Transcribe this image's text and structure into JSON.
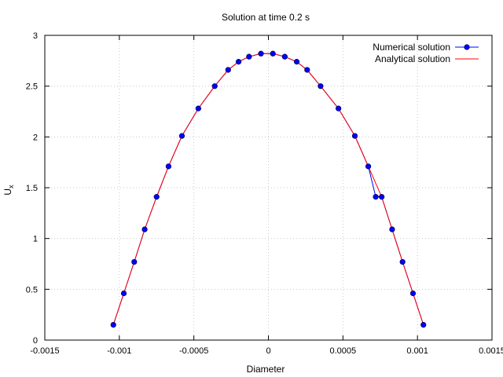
{
  "chart_data": {
    "type": "line",
    "title": "Solution at time 0.2 s",
    "xlabel": "Diameter",
    "ylabel": "U",
    "ylabel_sub": "x",
    "xlim": [
      -0.0015,
      0.0015
    ],
    "ylim": [
      0,
      3
    ],
    "xticks": [
      -0.0015,
      -0.001,
      -0.0005,
      0,
      0.0005,
      0.001,
      0.0015
    ],
    "xtick_labels": [
      "-0.0015",
      "-0.001",
      "-0.0005",
      "0",
      "0.0005",
      "0.001",
      "0.0015"
    ],
    "yticks": [
      0,
      0.5,
      1,
      1.5,
      2,
      2.5,
      3
    ],
    "ytick_labels": [
      "0",
      "0.5",
      "1",
      "1.5",
      "2",
      "2.5",
      "3"
    ],
    "grid": true,
    "legend_position": "top-right",
    "series": [
      {
        "name": "Numerical solution",
        "color": "#0000ff",
        "marker_color": "#0000ff",
        "style": "line-points",
        "x": [
          -0.00104,
          -0.00097,
          -0.0009,
          -0.00083,
          -0.00075,
          -0.00067,
          -0.00058,
          -0.00047,
          -0.00036,
          -0.00027,
          -0.0002,
          -0.00013,
          -5e-05,
          3e-05,
          0.00011,
          0.00019,
          0.00026,
          0.00035,
          0.00047,
          0.00058,
          0.00067,
          0.00072,
          0.00076,
          0.00083,
          0.0009,
          0.00097,
          0.00104
        ],
        "y": [
          0.15,
          0.46,
          0.77,
          1.09,
          1.41,
          1.71,
          2.01,
          2.28,
          2.5,
          2.66,
          2.74,
          2.79,
          2.82,
          2.82,
          2.79,
          2.74,
          2.66,
          2.5,
          2.28,
          2.01,
          1.71,
          1.41,
          1.41,
          1.09,
          0.77,
          0.46,
          0.15
        ]
      },
      {
        "name": "Analytical solution",
        "color": "#ff0000",
        "style": "line",
        "x": [
          -0.00104,
          -0.00097,
          -0.0009,
          -0.00083,
          -0.00075,
          -0.00067,
          -0.00058,
          -0.00047,
          -0.00036,
          -0.00027,
          -0.0002,
          -0.00013,
          -5e-05,
          3e-05,
          0.00011,
          0.00019,
          0.00026,
          0.00035,
          0.00047,
          0.00058,
          0.00067,
          0.00076,
          0.00083,
          0.0009,
          0.00097,
          0.00104
        ],
        "y": [
          0.15,
          0.46,
          0.77,
          1.09,
          1.41,
          1.71,
          2.01,
          2.28,
          2.5,
          2.66,
          2.74,
          2.79,
          2.82,
          2.82,
          2.79,
          2.74,
          2.66,
          2.5,
          2.28,
          2.01,
          1.71,
          1.41,
          1.09,
          0.77,
          0.46,
          0.15
        ]
      }
    ]
  }
}
